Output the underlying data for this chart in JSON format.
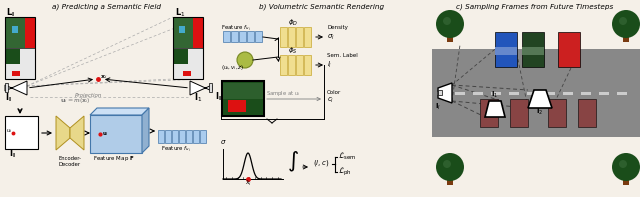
{
  "title_a": "a) Predicting a Semantic Field",
  "title_b": "b) Volumetric Semantic Rendering",
  "title_c": "c) Sampling Frames from Future Timesteps",
  "bg_color": "#f5f0e8",
  "colors": {
    "red": "#cc2222",
    "bright_red": "#dd1111",
    "green": "#336633",
    "darkgreen": "#1a4d1a",
    "mid_green": "#2d5f2d",
    "blue": "#2244aa",
    "cyan": "#44aacc",
    "light_cyan": "#88ccdd",
    "yellow_block": "#f0de90",
    "yellow_block_edge": "#c8a830",
    "light_blue_block": "#aaccee",
    "light_blue_edge": "#4477aa",
    "feat_map_face": "#b0cce8",
    "feat_map_top": "#cce0f5",
    "feat_map_side": "#90b0d0",
    "encoder_fill": "#e8d88a",
    "encoder_edge": "#b09020",
    "road_gray": "#888888",
    "road_line": "#bbbbbb",
    "tree_trunk": "#7a3b10",
    "car_red": "#cc2020",
    "car_blue": "#2255bb",
    "car_green_dark": "#224422",
    "car_side_blue": "#6688cc",
    "car_side_green": "#557755",
    "white": "#ffffff",
    "black": "#111111",
    "gray_text": "#777777",
    "dashed_gray": "#888888"
  }
}
